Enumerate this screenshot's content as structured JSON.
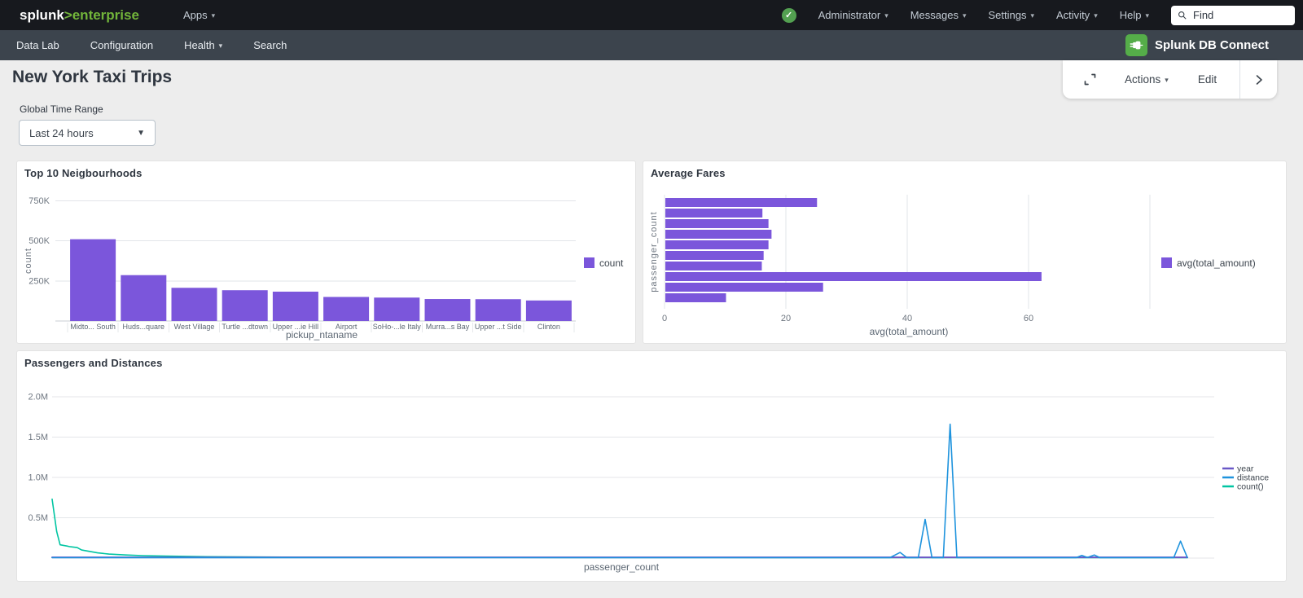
{
  "topbar": {
    "brand": "splunk",
    "brand_suffix": ">enterprise",
    "apps_label": "Apps",
    "menus": [
      "Administrator",
      "Messages",
      "Settings",
      "Activity",
      "Help"
    ],
    "find_placeholder": "Find"
  },
  "navbar": {
    "items": [
      "Data Lab",
      "Configuration",
      "Health",
      "Search"
    ],
    "app_name": "Splunk DB Connect"
  },
  "page": {
    "title": "New York Taxi Trips",
    "time_range_label": "Global Time Range",
    "time_range_value": "Last 24 hours",
    "toolbar": {
      "actions_label": "Actions",
      "edit_label": "Edit"
    }
  },
  "colors": {
    "accent_purple": "#7B56DB",
    "line_blue": "#1E93DD",
    "line_teal": "#00C5A2",
    "splunk_green": "#72B53A",
    "success_green": "#53A051",
    "topbar_bg": "#17191E",
    "navbar_bg": "#3C444D"
  },
  "chart_data": [
    {
      "type": "bar",
      "title": "Top 10 Neigbourhoods",
      "categories": [
        "Midto... South",
        "Huds...quare",
        "West Village",
        "Turtle ...dtown",
        "Upper ...ie Hill",
        "Airport",
        "SoHo-...le Italy",
        "Murra...s Bay",
        "Upper ...t Side",
        "Clinton"
      ],
      "values": [
        510000,
        286000,
        207000,
        192000,
        183000,
        150000,
        146000,
        137000,
        136000,
        128000
      ],
      "xlabel": "pickup_ntaname",
      "ylabel": "count",
      "yticks": [
        250000,
        500000,
        750000
      ],
      "ytick_labels": [
        "250K",
        "500K",
        "750K"
      ],
      "ylim": [
        0,
        780000
      ],
      "grid": true,
      "bar_color": "#7B56DB",
      "legend": [
        {
          "label": "count",
          "color": "#7B56DB"
        }
      ],
      "legend_position": "right"
    },
    {
      "type": "bar",
      "orientation": "horizontal",
      "title": "Average Fares",
      "values": [
        25,
        16,
        17,
        17.5,
        17,
        16.2,
        15.9,
        62,
        26,
        10
      ],
      "xlabel": "avg(total_amount)",
      "ylabel": "passenger_count",
      "xticks": [
        0,
        20,
        40,
        60
      ],
      "xlim": [
        0,
        80
      ],
      "grid": true,
      "bar_color": "#7B56DB",
      "legend": [
        {
          "label": "avg(total_amount)",
          "color": "#7B56DB"
        }
      ],
      "legend_position": "right"
    },
    {
      "type": "line",
      "title": "Passengers and Distances",
      "xlabel": "passenger_count",
      "yticks": [
        500000,
        1000000,
        1500000,
        2000000
      ],
      "ytick_labels": [
        "0.5M",
        "1.0M",
        "1.5M",
        "2.0M"
      ],
      "ylim": [
        0,
        2050000
      ],
      "x_axis_note": "no tick labels shown; x given as percent of axis width",
      "grid": true,
      "legend_position": "right",
      "series": [
        {
          "name": "year",
          "color": "#6A58C7",
          "points": [
            [
              0,
              9000
            ],
            [
              100,
              9000
            ]
          ]
        },
        {
          "name": "distance",
          "color": "#1E93DD",
          "points": [
            [
              0,
              5000
            ],
            [
              73.8,
              5000
            ],
            [
              74.7,
              70000
            ],
            [
              75.3,
              5000
            ],
            [
              76.3,
              5000
            ],
            [
              76.9,
              480000
            ],
            [
              77.5,
              5000
            ],
            [
              78.5,
              5000
            ],
            [
              79.1,
              1660000
            ],
            [
              79.7,
              5000
            ],
            [
              90.2,
              5000
            ],
            [
              90.7,
              32000
            ],
            [
              91.2,
              8000
            ],
            [
              91.8,
              38000
            ],
            [
              92.3,
              5000
            ],
            [
              98.8,
              5000
            ],
            [
              99.4,
              210000
            ],
            [
              100,
              5000
            ]
          ]
        },
        {
          "name": "count()",
          "color": "#00C5A2",
          "points": [
            [
              0,
              730000
            ],
            [
              0.4,
              330000
            ],
            [
              0.7,
              165000
            ],
            [
              1.3,
              150000
            ],
            [
              1.6,
              140000
            ],
            [
              2.2,
              130000
            ],
            [
              2.6,
              100000
            ],
            [
              3.2,
              85000
            ],
            [
              4,
              65000
            ],
            [
              5,
              50000
            ],
            [
              6.5,
              38000
            ],
            [
              8,
              30000
            ],
            [
              10,
              24000
            ],
            [
              13,
              18000
            ],
            [
              17,
              14000
            ],
            [
              22,
              11000
            ],
            [
              30,
              9000
            ],
            [
              45,
              7500
            ],
            [
              65,
              6500
            ],
            [
              100,
              6000
            ]
          ]
        }
      ]
    }
  ]
}
